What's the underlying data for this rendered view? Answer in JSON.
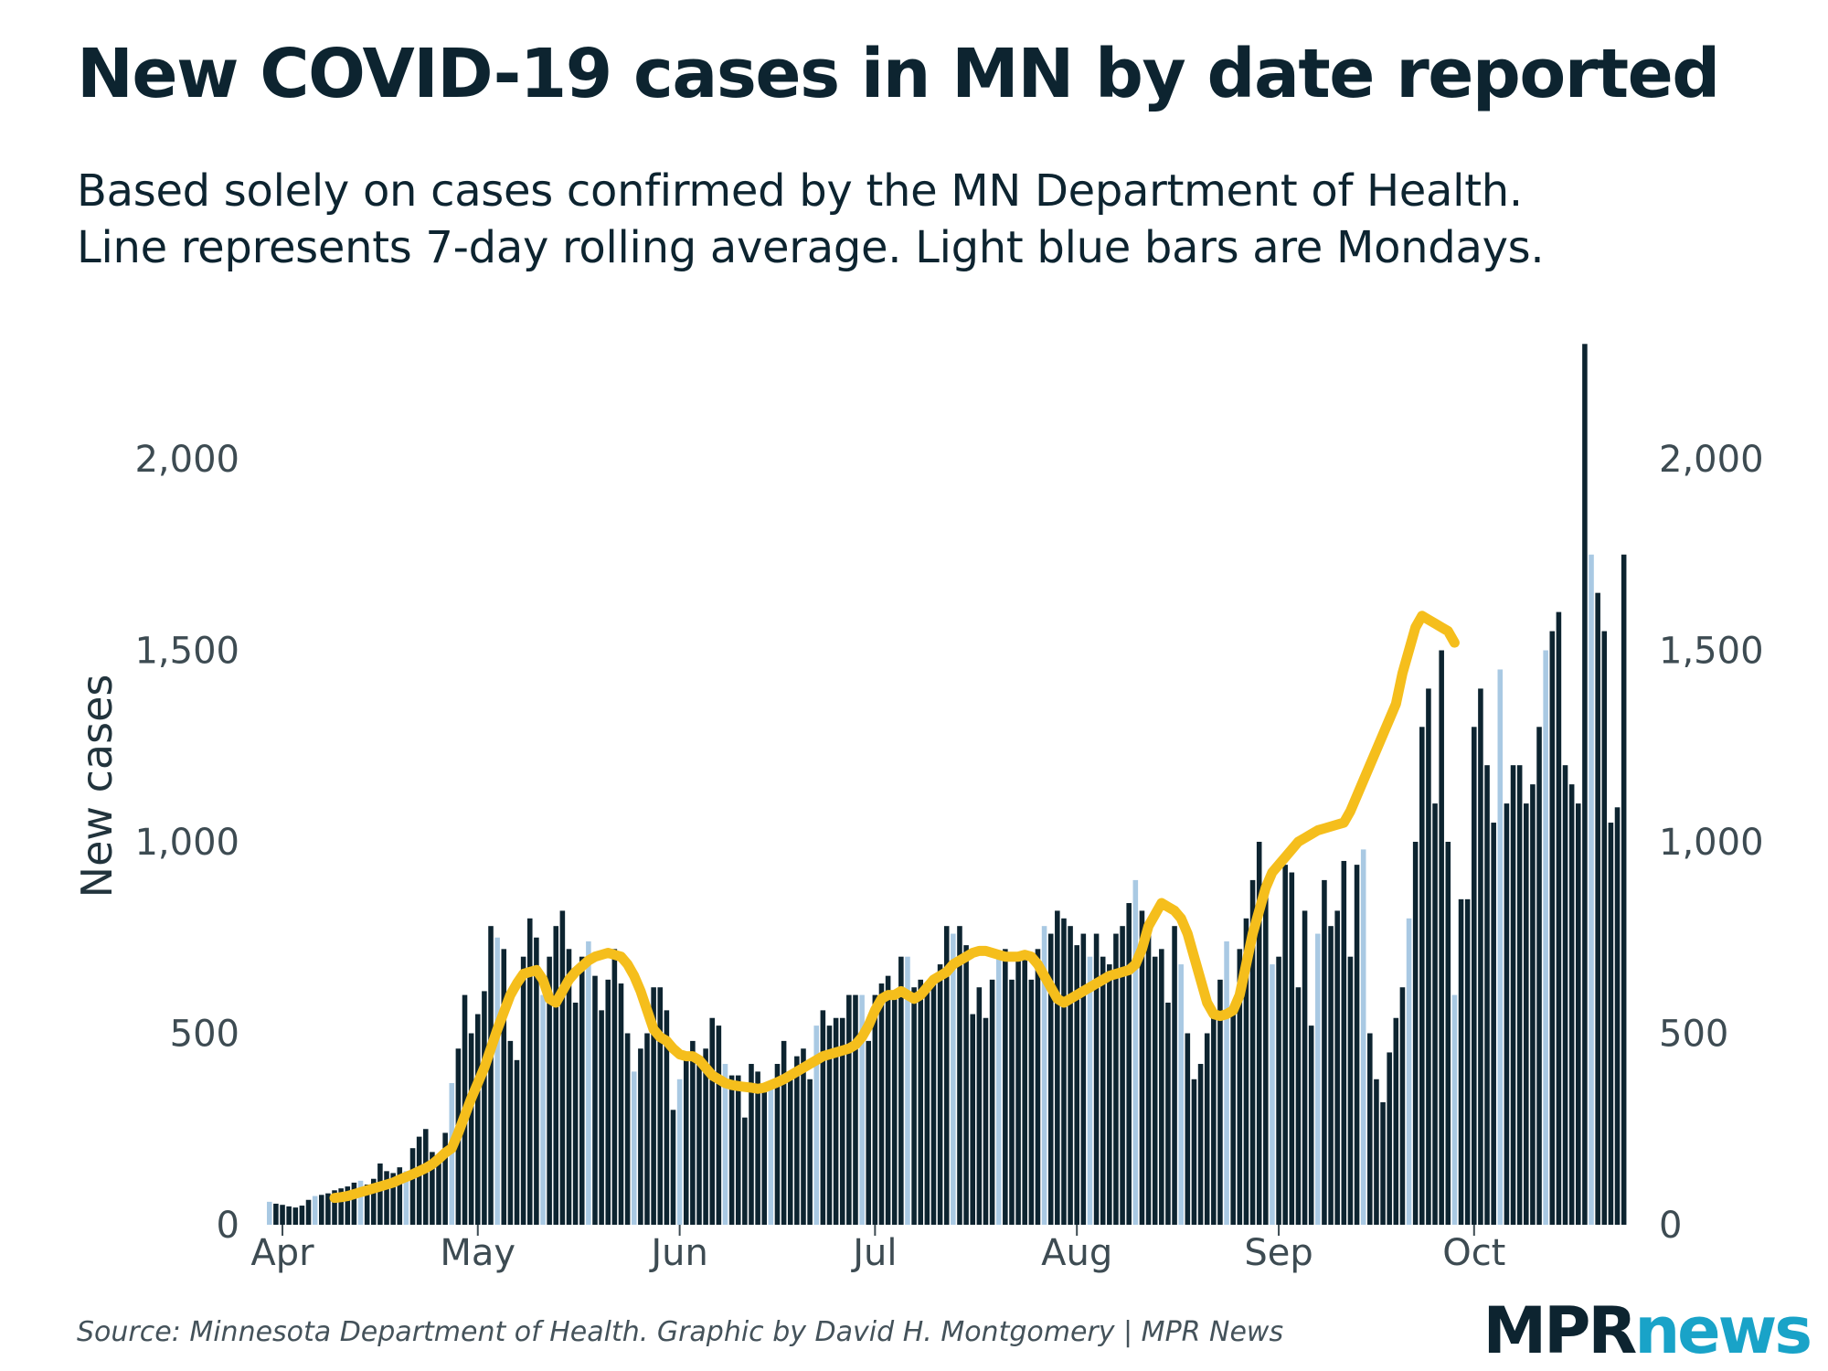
{
  "title": "New COVID-19 cases in MN by date reported",
  "subtitle": {
    "line1": "Based solely on cases confirmed by the MN Department of Health.",
    "line2": "Line represents 7-day rolling average. Light blue bars are Mondays."
  },
  "source": "Source: Minnesota Department of Health. Graphic by David H. Montgomery | MPR News",
  "logo": {
    "part1": "MPR",
    "part2": "news"
  },
  "colors": {
    "bar": "#0d2430",
    "monday_bar": "#a9c9e3",
    "rolling_line": "#f5be1c",
    "axis_text": "#3d4b52"
  },
  "chart_data": {
    "type": "bar",
    "title": "New COVID-19 cases in MN by date reported",
    "ylabel": "New cases",
    "xlabel": "",
    "ylim": [
      0,
      2300
    ],
    "yticks": [
      0,
      500,
      1000,
      1500,
      2000
    ],
    "ytick_labels": [
      "0",
      "500",
      "1,000",
      "1,500",
      "2,000"
    ],
    "x_start": "Mar 30",
    "xticks": [
      {
        "label": "Apr",
        "day": 2
      },
      {
        "label": "May",
        "day": 32
      },
      {
        "label": "Jun",
        "day": 63
      },
      {
        "label": "Jul",
        "day": 93
      },
      {
        "label": "Aug",
        "day": 124
      },
      {
        "label": "Sep",
        "day": 155
      },
      {
        "label": "Oct",
        "day": 185
      }
    ],
    "monday_offset": 0,
    "series": [
      {
        "name": "New cases",
        "values": [
          60,
          55,
          52,
          48,
          45,
          50,
          65,
          75,
          78,
          82,
          90,
          95,
          100,
          110,
          115,
          105,
          120,
          160,
          140,
          135,
          150,
          140,
          200,
          230,
          250,
          190,
          175,
          240,
          370,
          460,
          600,
          500,
          550,
          610,
          780,
          750,
          720,
          480,
          430,
          700,
          800,
          750,
          600,
          700,
          780,
          820,
          720,
          580,
          700,
          740,
          650,
          560,
          640,
          720,
          630,
          500,
          400,
          460,
          500,
          620,
          620,
          560,
          300,
          380,
          430,
          480,
          420,
          460,
          540,
          520,
          420,
          390,
          390,
          280,
          420,
          400,
          360,
          360,
          420,
          480,
          380,
          440,
          460,
          380,
          520,
          560,
          520,
          540,
          540,
          600,
          600,
          600,
          480,
          600,
          630,
          650,
          610,
          700,
          700,
          620,
          640,
          620,
          630,
          680,
          780,
          760,
          780,
          730,
          550,
          620,
          540,
          640,
          700,
          720,
          640,
          700,
          700,
          640,
          720,
          780,
          760,
          820,
          800,
          780,
          730,
          760,
          700,
          760,
          700,
          680,
          760,
          780,
          840,
          900,
          820,
          780,
          700,
          720,
          580,
          780,
          680,
          500,
          380,
          420,
          500,
          560,
          640,
          740,
          560,
          720,
          800,
          900,
          1000,
          860,
          680,
          700,
          940,
          920,
          620,
          820,
          520,
          760,
          900,
          780,
          820,
          950,
          700,
          940,
          980,
          500,
          380,
          320,
          450,
          540,
          620,
          800,
          1000,
          1300,
          1400,
          1100,
          1500,
          1000,
          600,
          850,
          850,
          1300,
          1400,
          1200,
          1050,
          1450,
          1100,
          1200,
          1200,
          1100,
          1150,
          1300,
          1500,
          1550,
          1600,
          1200,
          1150,
          1100,
          2300,
          1750,
          1650,
          1550,
          1050,
          1090,
          1750
        ]
      },
      {
        "name": "7-day rolling average",
        "start_day": 10,
        "values": [
          70,
          72,
          75,
          80,
          85,
          90,
          95,
          100,
          105,
          110,
          118,
          125,
          132,
          140,
          148,
          158,
          172,
          188,
          200,
          240,
          285,
          330,
          370,
          410,
          460,
          510,
          555,
          600,
          630,
          655,
          660,
          665,
          640,
          590,
          580,
          610,
          640,
          660,
          675,
          690,
          700,
          705,
          710,
          705,
          700,
          680,
          650,
          610,
          560,
          510,
          490,
          480,
          460,
          445,
          440,
          440,
          430,
          410,
          390,
          380,
          370,
          365,
          362,
          360,
          358,
          355,
          358,
          365,
          372,
          380,
          390,
          400,
          410,
          420,
          430,
          440,
          445,
          450,
          455,
          460,
          470,
          490,
          520,
          560,
          590,
          600,
          600,
          610,
          600,
          590,
          600,
          620,
          640,
          650,
          660,
          680,
          690,
          700,
          710,
          715,
          715,
          710,
          705,
          700,
          700,
          700,
          705,
          700,
          680,
          650,
          620,
          590,
          580,
          590,
          600,
          610,
          620,
          630,
          640,
          650,
          655,
          660,
          665,
          680,
          720,
          780,
          810,
          840,
          830,
          820,
          800,
          760,
          700,
          640,
          580,
          550,
          545,
          550,
          560,
          600,
          680,
          760,
          820,
          880,
          920,
          940,
          960,
          980,
          1000,
          1010,
          1020,
          1030,
          1035,
          1040,
          1045,
          1050,
          1080,
          1120,
          1160,
          1200,
          1240,
          1280,
          1320,
          1360,
          1440,
          1500,
          1560,
          1590,
          1580,
          1570,
          1560,
          1550,
          1520
        ]
      }
    ]
  }
}
